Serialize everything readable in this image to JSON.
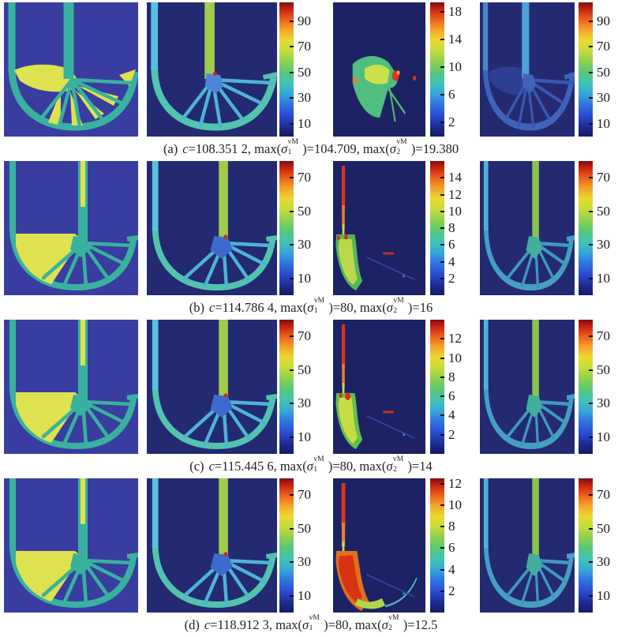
{
  "figure": {
    "colors": {
      "design_bg": "#3a3da0",
      "design_teal": "#38b29e",
      "design_yellow": "#dde24e",
      "stress_bg": "#232a72",
      "stress3_bg": "#1d2264",
      "jet_low": "#151a63",
      "jet_high": "#7e0d12"
    },
    "caption_format": {
      "c": "c",
      "eq": "=",
      "sep": ", ",
      "max": "max(",
      "sigma": "σ",
      "sup": "vM",
      "sub1": "1",
      "sub2": "2",
      "close": ")="
    },
    "rows": [
      {
        "label": "(a)",
        "c_value": "108.351 2",
        "max1": "104.709",
        "max2": "19.380",
        "caption_text": "(a) c=108.351 2, max(σ1vM)=104.709, max(σ2vM)=19.380",
        "colorbar2": {
          "ticks": [
            90,
            70,
            50,
            30,
            10
          ],
          "scale_max": 104.709
        },
        "colorbar3": {
          "ticks": [
            18,
            14,
            10,
            6,
            2
          ],
          "scale_max": 19.38
        },
        "colorbar4": {
          "ticks": [
            90,
            70,
            50,
            30,
            10
          ],
          "scale_max": 104.709
        }
      },
      {
        "label": "(b)",
        "c_value": "114.786 4",
        "max1": "80",
        "max2": "16",
        "caption_text": "(b) c=114.786 4, max(σ1vM)=80, max(σ2vM)=16",
        "colorbar2": {
          "ticks": [
            70,
            50,
            30,
            10
          ],
          "scale_max": 80
        },
        "colorbar3": {
          "ticks": [
            14,
            12,
            10,
            8,
            6,
            4,
            2
          ],
          "scale_max": 16
        },
        "colorbar4": {
          "ticks": [
            70,
            50,
            30,
            10
          ],
          "scale_max": 80
        }
      },
      {
        "label": "(c)",
        "c_value": "115.445 6",
        "max1": "80",
        "max2": "14",
        "caption_text": "(c) c=115.445 6, max(σ1vM)=80, max(σ2vM)=14",
        "colorbar2": {
          "ticks": [
            70,
            50,
            30,
            10
          ],
          "scale_max": 80
        },
        "colorbar3": {
          "ticks": [
            12,
            10,
            8,
            6,
            4,
            2
          ],
          "scale_max": 14
        },
        "colorbar4": {
          "ticks": [
            70,
            50,
            30,
            10
          ],
          "scale_max": 80
        }
      },
      {
        "label": "(d)",
        "c_value": "118.912 3",
        "max1": "80",
        "max2": "12.5",
        "caption_text": "(d) c=118.912 3, max(σ1vM)=80, max(σ2vM)=12.5",
        "colorbar2": {
          "ticks": [
            70,
            50,
            30,
            10
          ],
          "scale_max": 80
        },
        "colorbar3": {
          "ticks": [
            12,
            10,
            8,
            6,
            4,
            2
          ],
          "scale_max": 12.5
        },
        "colorbar4": {
          "ticks": [
            70,
            50,
            30,
            10
          ],
          "scale_max": 80
        }
      }
    ]
  }
}
